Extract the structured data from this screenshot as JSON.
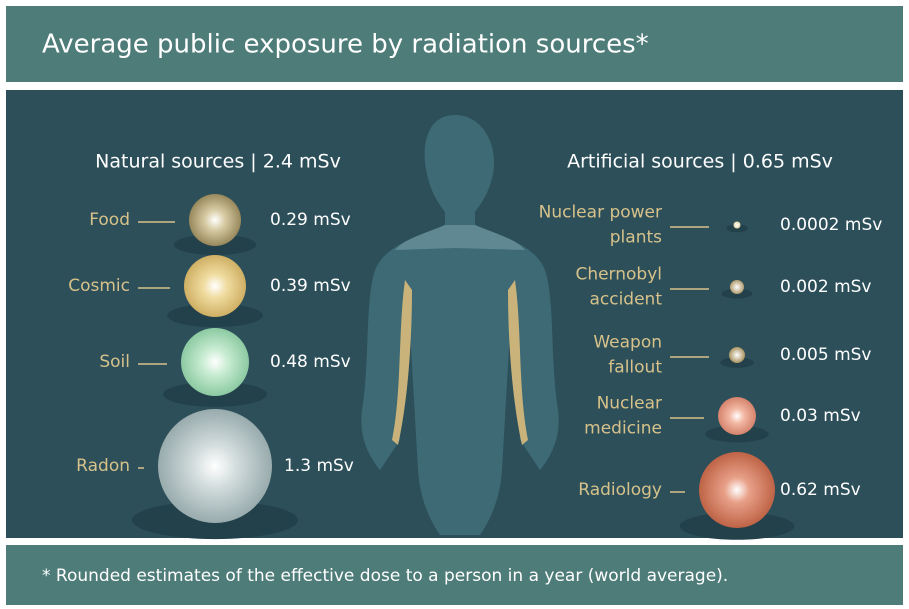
{
  "title": "Average public exposure by radiation sources*",
  "natural": {
    "heading": "Natural sources | 2.4 mSv",
    "items": [
      {
        "label": [
          "Food"
        ],
        "value": "0.29 mSv"
      },
      {
        "label": [
          "Cosmic"
        ],
        "value": "0.39 mSv"
      },
      {
        "label": [
          "Soil"
        ],
        "value": "0.48 mSv"
      },
      {
        "label": [
          "Radon"
        ],
        "value": "1.3 mSv"
      }
    ]
  },
  "artificial": {
    "heading": "Artificial sources | 0.65 mSv",
    "items": [
      {
        "label": [
          "Nuclear power",
          "plants"
        ],
        "value": "0.0002 mSv"
      },
      {
        "label": [
          "Chernobyl",
          "accident"
        ],
        "value": "0.002 mSv"
      },
      {
        "label": [
          "Weapon",
          "fallout"
        ],
        "value": "0.005 mSv"
      },
      {
        "label": [
          "Nuclear",
          "medicine"
        ],
        "value": "0.03 mSv"
      },
      {
        "label": [
          "Radiology"
        ],
        "value": "0.62 mSv"
      }
    ]
  },
  "footnote": "* Rounded estimates of the effective dose to a person in a year (world average)."
}
